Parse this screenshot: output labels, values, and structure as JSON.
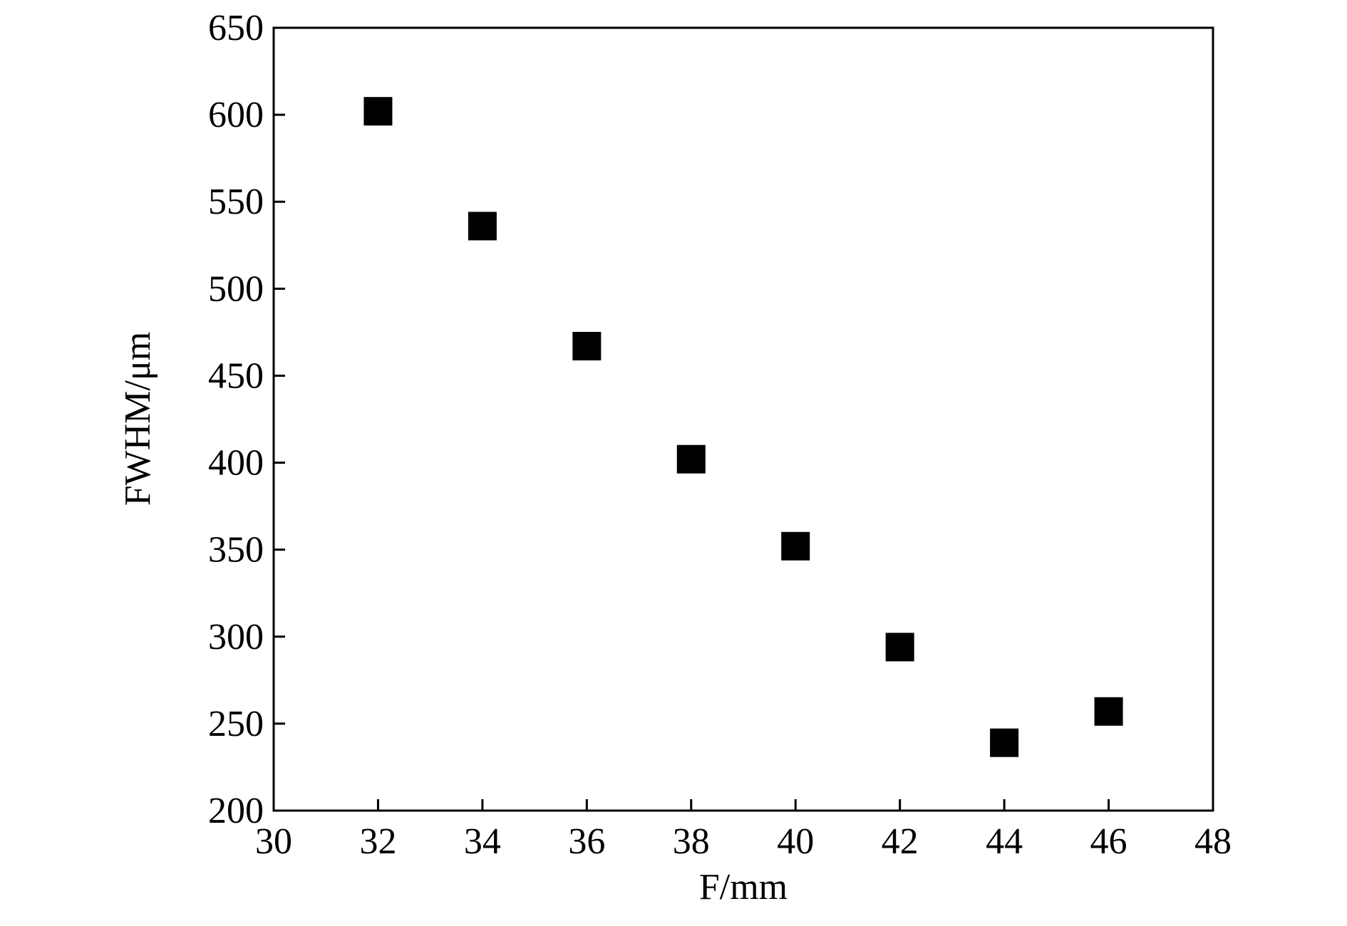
{
  "chart_data": {
    "type": "scatter",
    "x_label": "F/mm",
    "y_label": "FWHM/μm",
    "series": [
      {
        "name": "FWHM",
        "color": "#000000",
        "x": [
          32,
          34,
          36,
          38,
          40,
          42,
          44,
          46
        ],
        "values": [
          602,
          536,
          467,
          402,
          352,
          294,
          239,
          257
        ]
      }
    ],
    "xlim": [
      30,
      48
    ],
    "xticks": [
      30,
      32,
      34,
      36,
      38,
      40,
      42,
      44,
      46,
      48
    ],
    "ylim": [
      200,
      650
    ],
    "yticks": [
      200,
      250,
      300,
      350,
      400,
      450,
      500,
      550,
      600,
      650
    ],
    "marker": "square"
  }
}
